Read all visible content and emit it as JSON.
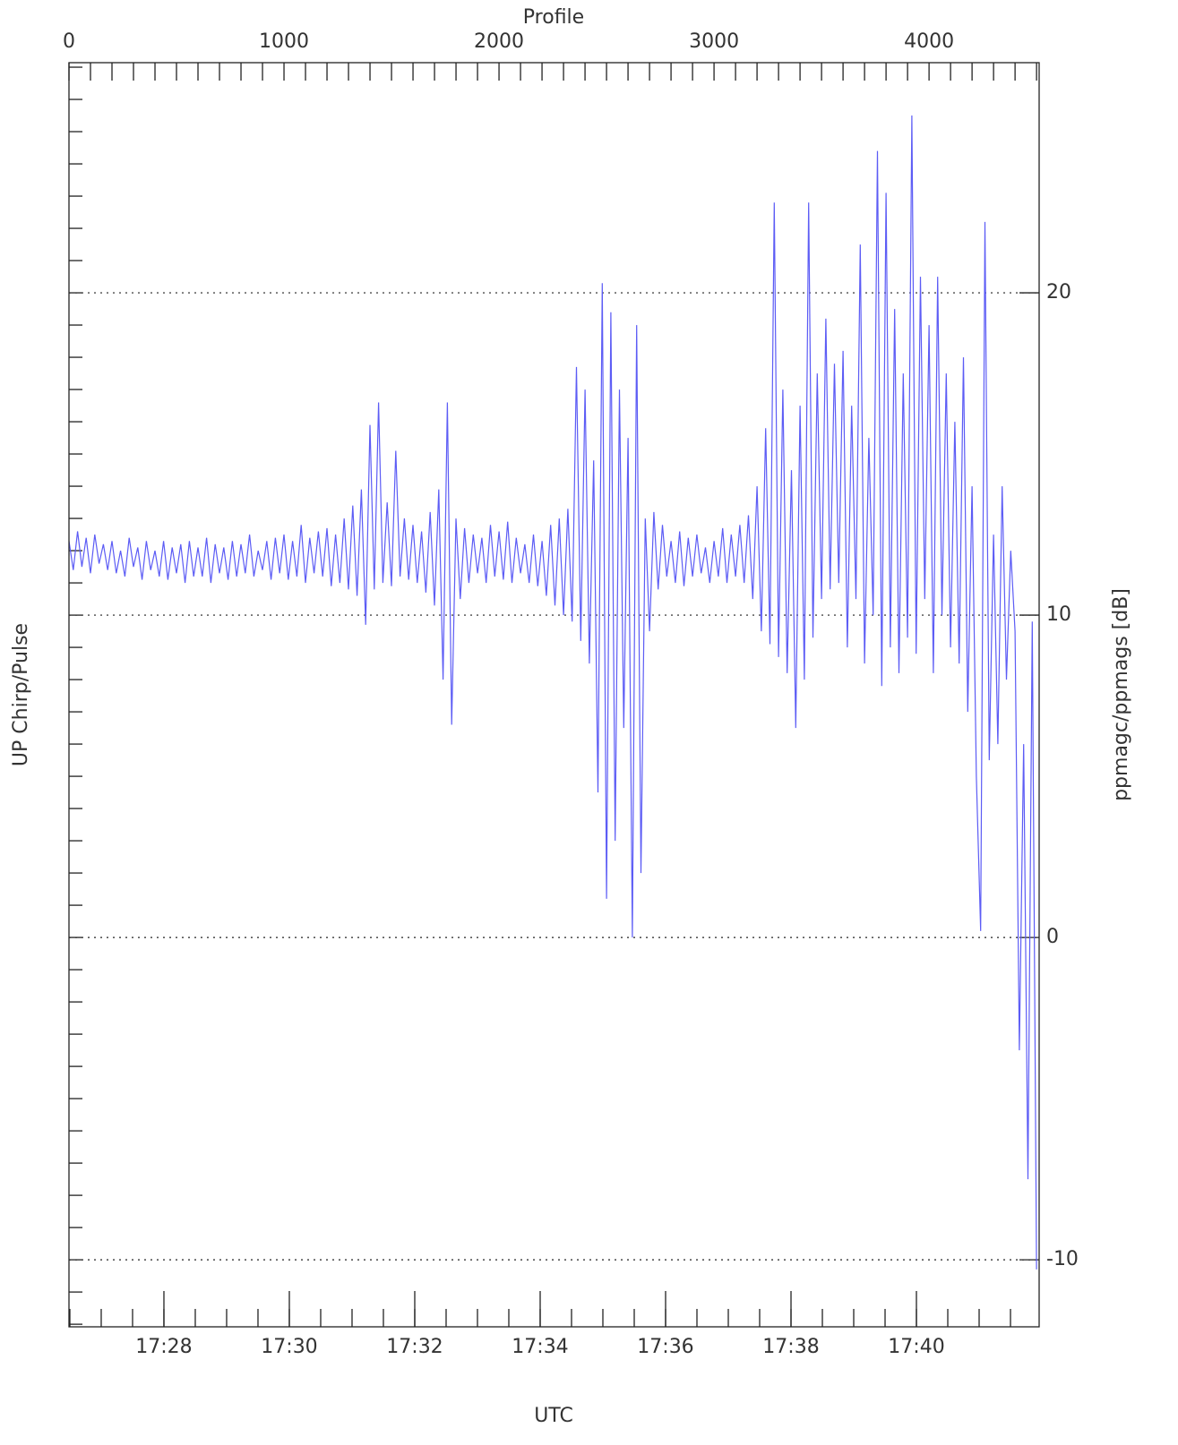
{
  "chart_data": {
    "type": "line",
    "xlabel": "Profile",
    "x2label": "UTC",
    "ylabel": "UP Chirp/Pulse",
    "y2label": "ppmagc/ppmags [dB]",
    "color": "#5c5cf5",
    "grid": true,
    "xlim": [
      0,
      4512
    ],
    "xticks": [
      0,
      1000,
      2000,
      3000,
      4000
    ],
    "xminorticks": [
      0,
      100,
      200,
      300,
      400,
      500,
      600,
      700,
      800,
      900,
      1000,
      1100,
      1200,
      1300,
      1400,
      1500,
      1600,
      1700,
      1800,
      1900,
      2000,
      2100,
      2200,
      2300,
      2400,
      2500,
      2600,
      2700,
      2800,
      2900,
      3000,
      3100,
      3200,
      3300,
      3400,
      3500,
      3600,
      3700,
      3800,
      3900,
      4000,
      4100,
      4200,
      4300,
      4400,
      4500
    ],
    "x2lim": [
      1046.486,
      1061.957
    ],
    "x2ticks": [
      {
        "value": 1048,
        "label": "17:28"
      },
      {
        "value": 1050,
        "label": "17:30"
      },
      {
        "value": 1052,
        "label": "17:32"
      },
      {
        "value": 1054,
        "label": "17:34"
      },
      {
        "value": 1056,
        "label": "17:36"
      },
      {
        "value": 1058,
        "label": "17:38"
      },
      {
        "value": 1060,
        "label": "17:40"
      }
    ],
    "x2minorticks": [
      1046.5,
      1047,
      1047.5,
      1048,
      1048.5,
      1049,
      1049.5,
      1050,
      1050.5,
      1051,
      1051.5,
      1052,
      1052.5,
      1053,
      1053.5,
      1054,
      1054.5,
      1055,
      1055.5,
      1056,
      1056.5,
      1057,
      1057.5,
      1058,
      1058.5,
      1059,
      1059.5,
      1060,
      1060.5,
      1061,
      1061.5
    ],
    "ylim": [
      -12.08,
      27.14
    ],
    "yticks": [
      -10,
      0,
      10,
      20
    ],
    "yminorticks": [
      -12,
      -11,
      -10,
      -9,
      -8,
      -7,
      -6,
      -5,
      -4,
      -3,
      -2,
      -1,
      0,
      1,
      2,
      3,
      4,
      5,
      6,
      7,
      8,
      9,
      10,
      11,
      12,
      13,
      14,
      15,
      16,
      17,
      18,
      19,
      20,
      21,
      22,
      23,
      24,
      25,
      26,
      27
    ],
    "x": [
      0,
      20,
      40,
      60,
      80,
      100,
      120,
      140,
      160,
      180,
      200,
      220,
      240,
      260,
      280,
      300,
      320,
      340,
      360,
      380,
      400,
      420,
      440,
      460,
      480,
      500,
      520,
      540,
      560,
      580,
      600,
      620,
      640,
      660,
      680,
      700,
      720,
      740,
      760,
      780,
      800,
      820,
      840,
      860,
      880,
      900,
      920,
      940,
      960,
      980,
      1000,
      1020,
      1040,
      1060,
      1080,
      1100,
      1120,
      1140,
      1160,
      1180,
      1200,
      1220,
      1240,
      1260,
      1280,
      1300,
      1320,
      1340,
      1360,
      1380,
      1400,
      1420,
      1440,
      1460,
      1480,
      1500,
      1520,
      1540,
      1560,
      1580,
      1600,
      1620,
      1640,
      1660,
      1680,
      1700,
      1720,
      1740,
      1760,
      1780,
      1800,
      1820,
      1840,
      1860,
      1880,
      1900,
      1920,
      1940,
      1960,
      1980,
      2000,
      2020,
      2040,
      2060,
      2080,
      2100,
      2120,
      2140,
      2160,
      2180,
      2200,
      2220,
      2240,
      2260,
      2280,
      2300,
      2320,
      2340,
      2360,
      2380,
      2400,
      2420,
      2440,
      2460,
      2480,
      2500,
      2520,
      2540,
      2560,
      2580,
      2600,
      2620,
      2640,
      2660,
      2680,
      2700,
      2720,
      2740,
      2760,
      2780,
      2800,
      2820,
      2840,
      2860,
      2880,
      2900,
      2920,
      2940,
      2960,
      2980,
      3000,
      3020,
      3040,
      3060,
      3080,
      3100,
      3120,
      3140,
      3160,
      3180,
      3200,
      3220,
      3240,
      3260,
      3280,
      3300,
      3320,
      3340,
      3360,
      3380,
      3400,
      3420,
      3440,
      3460,
      3480,
      3500,
      3520,
      3540,
      3560,
      3580,
      3600,
      3620,
      3640,
      3660,
      3680,
      3700,
      3720,
      3740,
      3760,
      3780,
      3800,
      3820,
      3840,
      3860,
      3880,
      3900,
      3920,
      3940,
      3960,
      3980,
      4000,
      4020,
      4040,
      4060,
      4080,
      4100,
      4120,
      4140,
      4160,
      4180,
      4200,
      4220,
      4240,
      4260,
      4280,
      4300,
      4320,
      4340,
      4360,
      4380,
      4400,
      4420,
      4440,
      4460,
      4480,
      4500
    ],
    "values": [
      12.3,
      11.4,
      12.6,
      11.5,
      12.4,
      11.3,
      12.5,
      11.6,
      12.2,
      11.4,
      12.3,
      11.3,
      12.0,
      11.2,
      12.4,
      11.5,
      12.1,
      11.1,
      12.3,
      11.4,
      12.0,
      11.2,
      12.3,
      11.1,
      12.1,
      11.3,
      12.2,
      11.0,
      12.3,
      11.2,
      12.1,
      11.2,
      12.4,
      11.0,
      12.2,
      11.3,
      12.1,
      11.1,
      12.3,
      11.2,
      12.2,
      11.3,
      12.5,
      11.2,
      12.0,
      11.4,
      12.3,
      11.1,
      12.4,
      11.3,
      12.5,
      11.1,
      12.3,
      11.2,
      12.8,
      11.0,
      12.4,
      11.3,
      12.6,
      11.2,
      12.7,
      10.9,
      12.5,
      11.0,
      13.0,
      10.8,
      13.4,
      10.6,
      13.9,
      9.7,
      15.9,
      10.8,
      16.6,
      11.0,
      13.5,
      10.9,
      15.1,
      11.2,
      13.0,
      11.1,
      12.8,
      11.0,
      12.6,
      10.7,
      13.2,
      10.3,
      13.9,
      8.0,
      16.6,
      6.6,
      13.0,
      10.5,
      12.7,
      11.0,
      12.5,
      11.3,
      12.4,
      11.0,
      12.8,
      11.2,
      12.6,
      11.1,
      12.9,
      11.0,
      12.4,
      11.3,
      12.2,
      11.0,
      12.5,
      10.9,
      12.3,
      10.6,
      12.8,
      10.3,
      13.0,
      10.0,
      13.3,
      9.8,
      17.7,
      9.2,
      17.0,
      8.5,
      14.8,
      4.5,
      20.3,
      1.2,
      19.4,
      3.0,
      17.0,
      6.5,
      15.5,
      0.0,
      19.0,
      2.0,
      13.0,
      9.5,
      13.2,
      10.8,
      12.8,
      11.2,
      12.3,
      11.0,
      12.6,
      10.9,
      12.4,
      11.2,
      12.5,
      11.3,
      12.1,
      11.0,
      12.3,
      11.2,
      12.7,
      11.0,
      12.5,
      11.2,
      12.8,
      11.0,
      13.1,
      10.5,
      14.0,
      9.5,
      15.8,
      9.1,
      22.8,
      8.7,
      17.0,
      8.2,
      14.5,
      6.5,
      16.5,
      8.0,
      22.8,
      9.3,
      17.5,
      10.5,
      19.2,
      10.8,
      17.8,
      11.0,
      18.2,
      9.0,
      16.5,
      10.5,
      21.5,
      8.5,
      15.5,
      10.0,
      24.4,
      7.8,
      23.1,
      9.0,
      19.5,
      8.2,
      17.5,
      9.3,
      25.5,
      8.8,
      20.5,
      10.5,
      19.0,
      8.2,
      20.5,
      10.0,
      17.5,
      9.0,
      16.0,
      8.5,
      18.0,
      7.0,
      14.0,
      5.0,
      0.2,
      22.2,
      5.5,
      12.5,
      6.0,
      14.0,
      8.0,
      12.0,
      9.5,
      -3.5,
      6.0,
      -7.5,
      9.8,
      -10.3
    ]
  }
}
